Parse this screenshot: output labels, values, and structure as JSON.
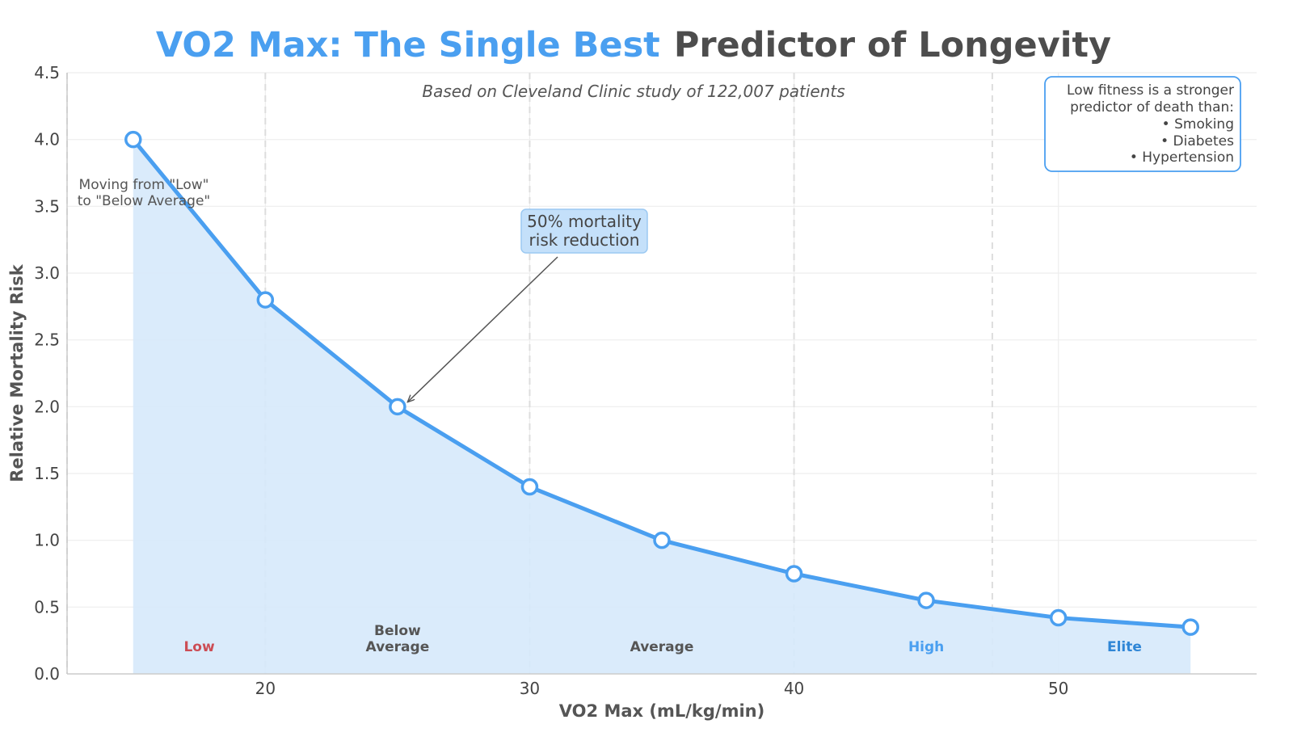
{
  "chart_data": {
    "type": "line",
    "title_highlight": "VO2 Max: The Single Best",
    "title_rest": "Predictor of Longevity",
    "subtitle": "Based on Cleveland Clinic study of 122,007 patients",
    "xlabel": "VO2 Max (mL/kg/min)",
    "ylabel": "Relative Mortality Risk",
    "xlim": [
      12.5,
      57.5
    ],
    "ylim": [
      0,
      4.5
    ],
    "x_ticks": [
      20,
      30,
      40,
      50
    ],
    "y_ticks": [
      0.0,
      0.5,
      1.0,
      1.5,
      2.0,
      2.5,
      3.0,
      3.5,
      4.0,
      4.5
    ],
    "y_tick_labels": [
      "0.0",
      "0.5",
      "1.0",
      "1.5",
      "2.0",
      "2.5",
      "3.0",
      "3.5",
      "4.0",
      "4.5"
    ],
    "grid": true,
    "series": [
      {
        "name": "Relative Mortality Risk",
        "x": [
          15,
          20,
          25,
          30,
          35,
          40,
          45,
          50,
          55
        ],
        "y": [
          4.0,
          2.8,
          2.0,
          1.4,
          1.0,
          0.75,
          0.55,
          0.42,
          0.35
        ],
        "color": "#4a9ff0",
        "fill_color": "#d6e9fb"
      }
    ],
    "zone_boundaries": [
      12.5,
      20,
      30,
      40,
      47.5
    ],
    "zones": [
      {
        "lines": [
          "Low"
        ],
        "x": 17.5,
        "color": "#cc4d55"
      },
      {
        "lines": [
          "Below",
          "Average"
        ],
        "x": 25,
        "color": "#555555"
      },
      {
        "lines": [
          "Average"
        ],
        "x": 35,
        "color": "#555555"
      },
      {
        "lines": [
          "High"
        ],
        "x": 45,
        "color": "#4a9ff0"
      },
      {
        "lines": [
          "Elite"
        ],
        "x": 52.5,
        "color": "#2f86d6"
      }
    ],
    "annotations": {
      "low_note": [
        "Moving from \"Low\"",
        "to \"Below Average\""
      ],
      "callout": {
        "lines": [
          "50% mortality",
          "risk reduction"
        ],
        "x": 25,
        "y": 2.0
      },
      "info_box": [
        "Low fitness is a stronger",
        "predictor of death than:",
        "• Smoking",
        "• Diabetes",
        "• Hypertension"
      ]
    },
    "colors": {
      "accent": "#4a9ff0",
      "title_dark": "#4d4d4d",
      "grid": "#eeeeee",
      "zone_line": "#dddddd",
      "callout_bg": "#c4e0fa"
    }
  }
}
